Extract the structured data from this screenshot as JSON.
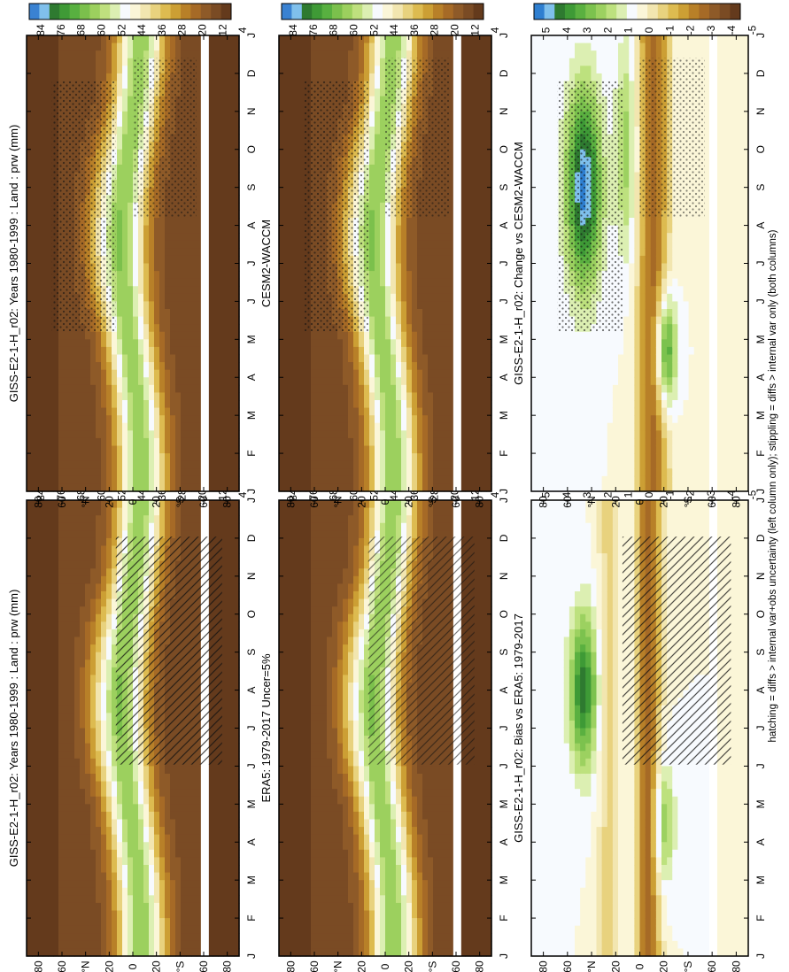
{
  "figure": {
    "footnote": "hatching = diffs > internal var+obs uncertainty (left column only); stippling = diffs > internal var only (both columns)"
  },
  "palettes": {
    "abs": [
      "#3a82d2",
      "#80c0ec",
      "#2e7a30",
      "#3f9a36",
      "#58b040",
      "#7bc04c",
      "#9cd05e",
      "#bfe07e",
      "#dcefb2",
      "#f7fafe",
      "#fbf6d8",
      "#f2e6b0",
      "#e8d27e",
      "#ddbb50",
      "#cc9f34",
      "#b88028",
      "#a66a26",
      "#8e5a28",
      "#7a4b24",
      "#643a1c"
    ],
    "diff": [
      "#2f7fd0",
      "#7fc0ec",
      "#2e7a30",
      "#3e9a36",
      "#5ab040",
      "#7cc24e",
      "#9cd160",
      "#bde17e",
      "#dcefb2",
      "#f7fafe",
      "#fbf6d8",
      "#f2e6b0",
      "#e8d27e",
      "#ddbb50",
      "#cc9f34",
      "#b88028",
      "#a66a26",
      "#8e5a28",
      "#7a4b24",
      "#643a1c"
    ]
  },
  "chart_data": [
    {
      "type": "heatmap",
      "title": "GISS-E2-1-H_r02: Years 1980-1999 : Land : prw (mm)",
      "x": [
        "J",
        "F",
        "M",
        "A",
        "M",
        "J",
        "J",
        "A",
        "S",
        "O",
        "N",
        "D",
        "J"
      ],
      "y_ticks": [
        "80",
        "60",
        "°N",
        "20",
        "0",
        "20",
        "°S",
        "60",
        "80"
      ],
      "colorbar": [
        "84",
        "76",
        "68",
        "60",
        "52",
        "44",
        "36",
        "28",
        "20",
        "12",
        "4"
      ],
      "palette": "abs",
      "field": "abs",
      "overlay": "hatch"
    },
    {
      "type": "heatmap",
      "title": "GISS-E2-1-H_r02: Years 1980-1999 : Land : prw (mm)",
      "x": [
        "J",
        "F",
        "M",
        "A",
        "M",
        "J",
        "J",
        "A",
        "S",
        "O",
        "N",
        "D",
        "J"
      ],
      "y_ticks": [
        "80",
        "60",
        "°N",
        "20",
        "0",
        "20",
        "°S",
        "60",
        "80"
      ],
      "colorbar": [
        "84",
        "76",
        "68",
        "60",
        "52",
        "44",
        "36",
        "28",
        "20",
        "12",
        "4"
      ],
      "palette": "abs",
      "field": "abs",
      "overlay": "stipple"
    },
    {
      "type": "heatmap",
      "title": "ERA5: 1979-2017 Uncer=5%",
      "x": [
        "J",
        "F",
        "M",
        "A",
        "M",
        "J",
        "J",
        "A",
        "S",
        "O",
        "N",
        "D",
        "J"
      ],
      "y_ticks": [
        "80",
        "60",
        "°N",
        "20",
        "0",
        "20",
        "°S",
        "60",
        "80"
      ],
      "colorbar": [
        "84",
        "76",
        "68",
        "60",
        "52",
        "44",
        "36",
        "28",
        "20",
        "12",
        "4"
      ],
      "palette": "abs",
      "field": "obs",
      "overlay": "hatch-light"
    },
    {
      "type": "heatmap",
      "title": "CESM2-WACCM",
      "x": [
        "J",
        "F",
        "M",
        "A",
        "M",
        "J",
        "J",
        "A",
        "S",
        "O",
        "N",
        "D",
        "J"
      ],
      "y_ticks": [
        "80",
        "60",
        "°N",
        "20",
        "0",
        "20",
        "°S",
        "60",
        "80"
      ],
      "colorbar": [
        "84",
        "76",
        "68",
        "60",
        "52",
        "44",
        "36",
        "28",
        "20",
        "12",
        "4"
      ],
      "palette": "abs",
      "field": "abs",
      "overlay": "stipple"
    },
    {
      "type": "heatmap",
      "title": "GISS-E2-1-H_r02: Bias vs ERA5: 1979-2017",
      "x": [
        "J",
        "F",
        "M",
        "A",
        "M",
        "J",
        "J",
        "A",
        "S",
        "O",
        "N",
        "D",
        "J"
      ],
      "y_ticks": [
        "80",
        "60",
        "°N",
        "20",
        "0",
        "20",
        "°S",
        "60",
        "80"
      ],
      "colorbar": [
        "5",
        "4",
        "3",
        "2",
        "1",
        "0",
        "-1",
        "-2",
        "-3",
        "-4",
        "-5"
      ],
      "palette": "diff",
      "field": "bias",
      "overlay": "hatch"
    },
    {
      "type": "heatmap",
      "title": "GISS-E2-1-H_r02: Change vs CESM2-WACCM",
      "x": [
        "J",
        "F",
        "M",
        "A",
        "M",
        "J",
        "J",
        "A",
        "S",
        "O",
        "N",
        "D",
        "J"
      ],
      "y_ticks": [
        "80",
        "60",
        "°N",
        "20",
        "0",
        "20",
        "°S",
        "60",
        "80"
      ],
      "colorbar": [
        "5",
        "4",
        "3",
        "2",
        "1",
        "0",
        "-1",
        "-2",
        "-3",
        "-4",
        "-5"
      ],
      "palette": "diff",
      "field": "change",
      "overlay": "stipple"
    }
  ]
}
